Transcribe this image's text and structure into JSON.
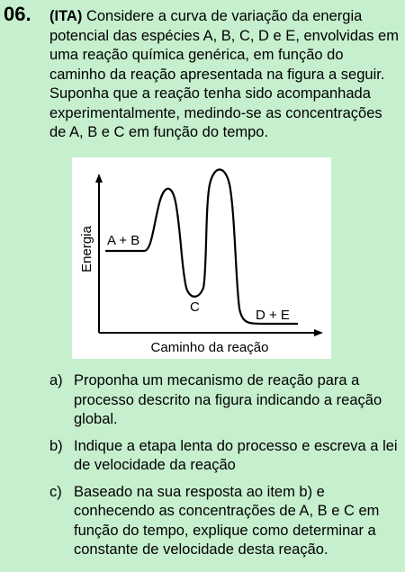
{
  "question": {
    "number": "06.",
    "source_tag": "(ITA)",
    "stem_text": "Considere a curva de variação da energia potencial das espécies A, B, C, D e E, envolvidas em uma reação química genérica, em função do caminho da reação apresentada na figura a seguir. Suponha que a reação tenha sido acompanhada experimentalmente, medindo-se as concentrações de A, B e C em função do tempo."
  },
  "figure": {
    "y_axis_label": "Energia",
    "x_axis_label": "Caminho da reação",
    "labels": {
      "reactants": "A + B",
      "intermediate": "C",
      "products": "D + E"
    }
  },
  "items": [
    {
      "marker": "a)",
      "text": "Proponha um mecanismo de reação para a processo descrito na figura indicando a reação global."
    },
    {
      "marker": "b)",
      "text": "Indique a etapa lenta do processo e escreva a lei de velocidade da reação"
    },
    {
      "marker": "c)",
      "text": "Baseado na sua resposta ao item b) e conhecendo as concentrações de A, B e C em função do tempo, explique como determinar a constante de velocidade desta reação."
    }
  ]
}
